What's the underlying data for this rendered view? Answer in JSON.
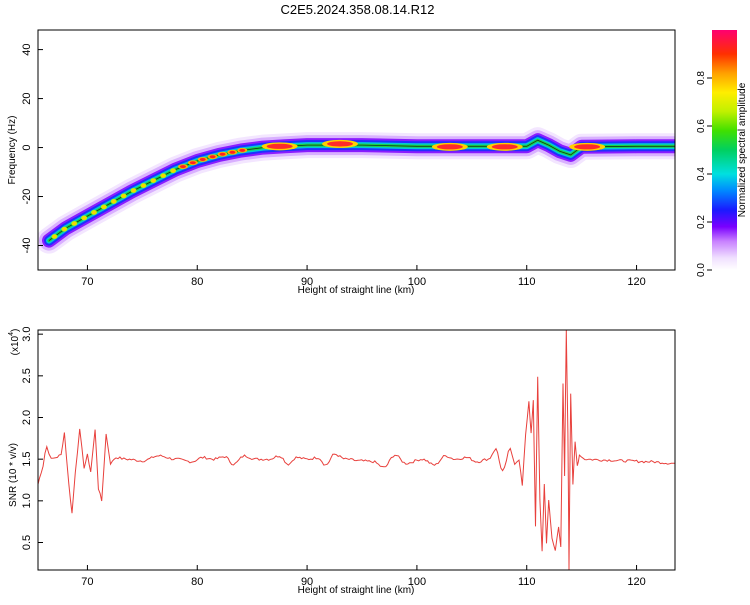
{
  "title": "C2E5.2024.358.08.14.R12",
  "chart_data": [
    {
      "type": "heatmap",
      "title": "",
      "xlabel": "Height of straight line (km)",
      "ylabel": "Frequency (Hz)",
      "xlim": [
        65.5,
        123.5
      ],
      "ylim": [
        -50,
        48
      ],
      "xticks": [
        70,
        80,
        90,
        100,
        110,
        120
      ],
      "yticks": [
        -40,
        -20,
        0,
        20,
        40
      ],
      "colorbar": {
        "label": "Normalized spectral amplitude",
        "range": [
          0,
          1
        ],
        "ticks": [
          "0.0",
          "0.2",
          "0.4",
          "0.6",
          "0.8"
        ],
        "placement": "right"
      },
      "track": {
        "x": [
          66.5,
          68,
          70,
          72,
          74,
          76,
          78,
          80,
          82,
          84,
          86,
          88,
          90,
          95,
          100,
          105,
          110,
          111,
          112,
          113,
          114,
          115,
          120,
          123.5
        ],
        "y": [
          -38,
          -33,
          -28,
          -23,
          -18,
          -13.5,
          -9,
          -5.5,
          -3,
          -1.2,
          0,
          0.5,
          1,
          1,
          0.5,
          0.5,
          0.5,
          3,
          1,
          -1.5,
          -3,
          0.3,
          0.5,
          0.5
        ]
      },
      "peaks": [
        {
          "x": 87.5,
          "y": 0.5
        },
        {
          "x": 93,
          "y": 1.5
        },
        {
          "x": 103,
          "y": 0.3
        },
        {
          "x": 108,
          "y": 0.3
        },
        {
          "x": 115.5,
          "y": 0.3
        }
      ]
    },
    {
      "type": "line",
      "title": "",
      "xlabel": "Height of straight line (km)",
      "ylabel": "SNR (10 * v/v)",
      "yscale_label": "(x10",
      "yscale_exp": "4",
      "xlim": [
        65.5,
        123.5
      ],
      "ylim": [
        0.17,
        3.05
      ],
      "xticks": [
        70,
        80,
        90,
        100,
        110,
        120
      ],
      "yticks": [
        "0.5",
        "1.0",
        "1.5",
        "2.0",
        "2.5",
        "3.0"
      ],
      "color": "#e8403c",
      "anchors": [
        [
          65.5,
          1.2
        ],
        [
          65.8,
          1.35
        ],
        [
          66.3,
          1.65
        ],
        [
          66.7,
          1.5
        ],
        [
          67.1,
          1.52
        ],
        [
          67.6,
          1.55
        ],
        [
          67.9,
          1.82
        ],
        [
          68.3,
          1.2
        ],
        [
          68.6,
          0.85
        ],
        [
          68.9,
          1.35
        ],
        [
          69.3,
          1.85
        ],
        [
          69.7,
          1.4
        ],
        [
          70.0,
          1.55
        ],
        [
          70.3,
          1.35
        ],
        [
          70.7,
          1.85
        ],
        [
          71.0,
          1.15
        ],
        [
          71.3,
          1.0
        ],
        [
          71.7,
          1.8
        ],
        [
          72.1,
          1.45
        ],
        [
          72.6,
          1.52
        ],
        [
          73.5,
          1.5
        ],
        [
          75,
          1.48
        ],
        [
          76.5,
          1.54
        ],
        [
          78,
          1.5
        ],
        [
          79.5,
          1.47
        ],
        [
          80.5,
          1.52
        ],
        [
          81.5,
          1.5
        ],
        [
          82.5,
          1.53
        ],
        [
          83.3,
          1.44
        ],
        [
          84.3,
          1.54
        ],
        [
          85.3,
          1.5
        ],
        [
          86.5,
          1.5
        ],
        [
          87.5,
          1.54
        ],
        [
          88.3,
          1.44
        ],
        [
          89.0,
          1.52
        ],
        [
          90.0,
          1.5
        ],
        [
          91.0,
          1.52
        ],
        [
          91.7,
          1.43
        ],
        [
          92.5,
          1.56
        ],
        [
          93.5,
          1.5
        ],
        [
          94.8,
          1.48
        ],
        [
          96.0,
          1.47
        ],
        [
          97.0,
          1.4
        ],
        [
          98.0,
          1.55
        ],
        [
          99.0,
          1.45
        ],
        [
          100.5,
          1.5
        ],
        [
          101.6,
          1.43
        ],
        [
          102.6,
          1.54
        ],
        [
          103.5,
          1.5
        ],
        [
          104.5,
          1.52
        ],
        [
          105.5,
          1.47
        ],
        [
          106.5,
          1.5
        ],
        [
          107.2,
          1.62
        ],
        [
          107.8,
          1.35
        ],
        [
          108.5,
          1.62
        ],
        [
          108.9,
          1.45
        ],
        [
          109.3,
          1.5
        ],
        [
          109.6,
          1.18
        ],
        [
          109.9,
          1.8
        ],
        [
          110.2,
          2.2
        ],
        [
          110.4,
          1.8
        ],
        [
          110.6,
          2.2
        ],
        [
          110.8,
          0.7
        ],
        [
          111.0,
          2.5
        ],
        [
          111.2,
          1.0
        ],
        [
          111.4,
          0.4
        ],
        [
          111.6,
          1.2
        ],
        [
          111.8,
          0.5
        ],
        [
          112.0,
          1.0
        ],
        [
          112.3,
          0.55
        ],
        [
          112.6,
          0.4
        ],
        [
          112.9,
          0.7
        ],
        [
          113.1,
          0.45
        ],
        [
          113.3,
          2.4
        ],
        [
          113.45,
          1.3
        ],
        [
          113.6,
          3.05
        ],
        [
          113.75,
          1.8
        ],
        [
          113.85,
          0.18
        ],
        [
          114.0,
          2.3
        ],
        [
          114.2,
          1.2
        ],
        [
          114.4,
          1.7
        ],
        [
          114.6,
          1.42
        ],
        [
          114.8,
          1.55
        ],
        [
          115.3,
          1.5
        ],
        [
          117,
          1.49
        ],
        [
          119,
          1.48
        ],
        [
          121,
          1.47
        ],
        [
          123.5,
          1.45
        ]
      ]
    }
  ]
}
